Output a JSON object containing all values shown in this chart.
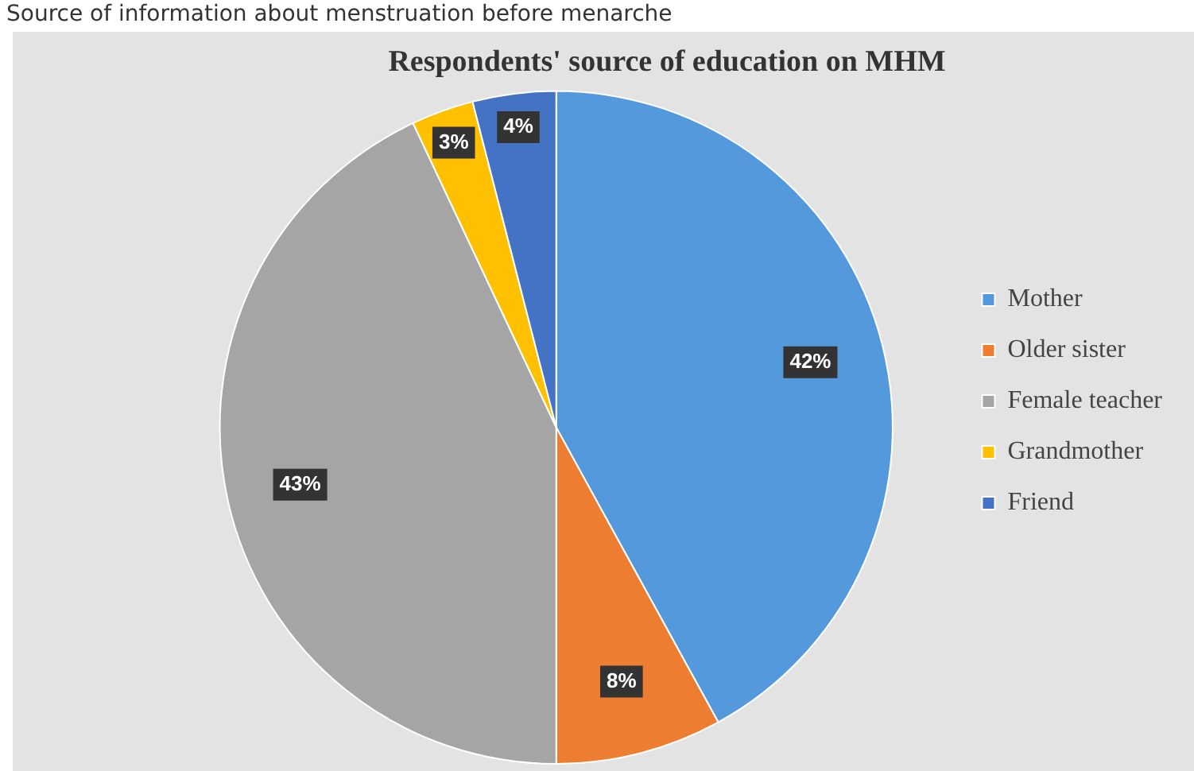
{
  "chart_data": {
    "type": "pie",
    "title": "Respondents' source of education on MHM",
    "annotations": [
      "Source of information about menstruation before menarche"
    ],
    "categories": [
      "Mother",
      "Older sister",
      "Female teacher",
      "Grandmother",
      "Friend"
    ],
    "values": [
      42,
      8,
      43,
      3,
      4
    ],
    "colors": [
      "#5599dd",
      "#ed7d31",
      "#a5a5a5",
      "#ffc000",
      "#4472c4"
    ],
    "value_labels": [
      "42%",
      "8%",
      "43%",
      "3%",
      "4%"
    ],
    "legend": "right"
  }
}
